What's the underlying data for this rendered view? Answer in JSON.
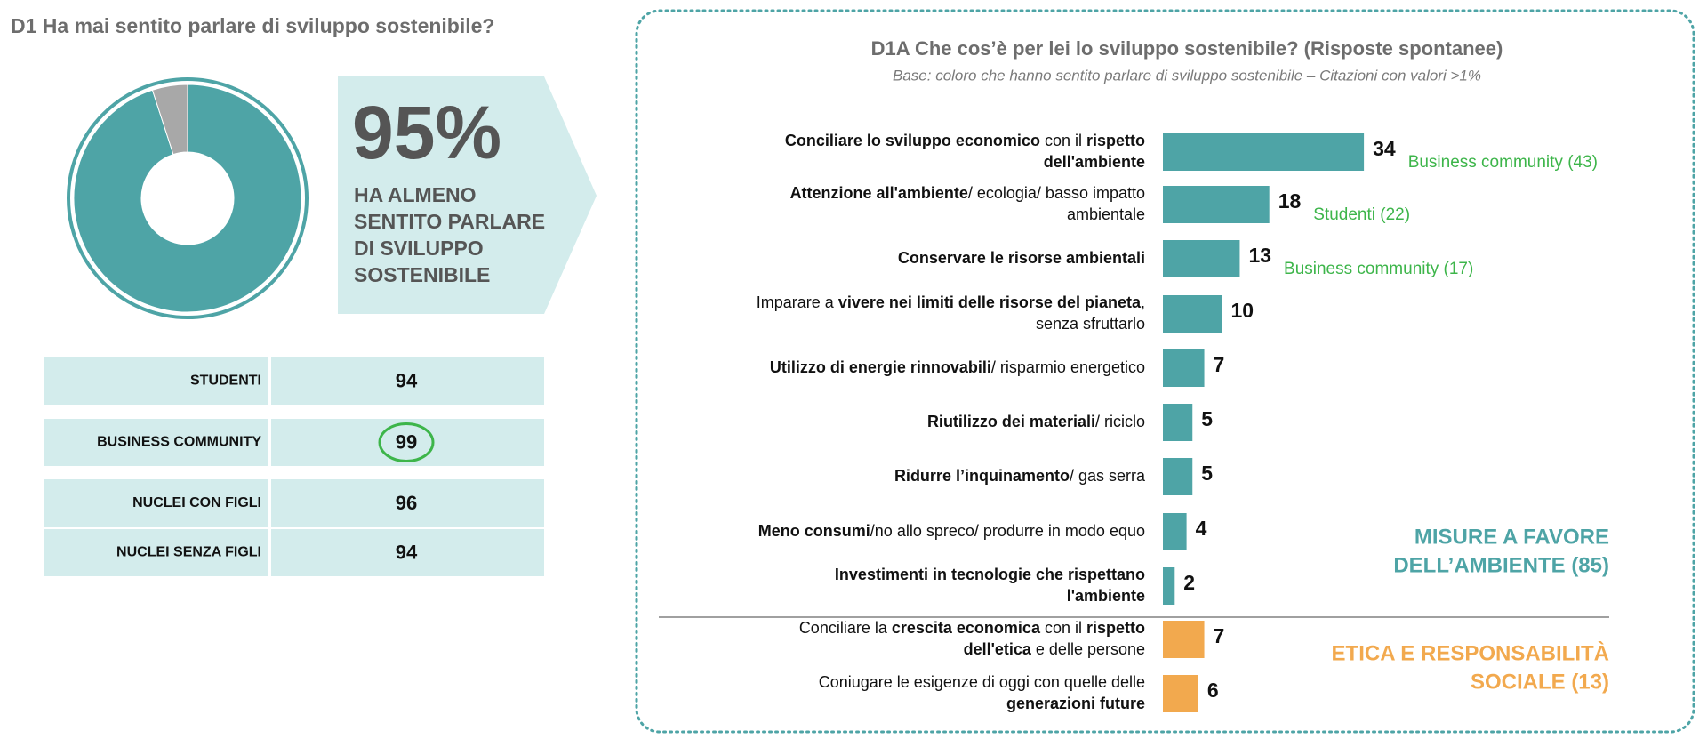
{
  "chart_data": [
    {
      "type": "pie",
      "title": "D1 Ha mai sentito parlare di sviluppo sostenibile?",
      "values": [
        95,
        5
      ],
      "value_labels": [
        "95%",
        null
      ],
      "colors": [
        "#4ea4a6",
        "#a8a8a8"
      ],
      "callout": [
        "HA ALMENO",
        "SENTITO PARLARE",
        "DI SVILUPPO",
        "SOSTENIBILE"
      ]
    },
    {
      "type": "bar",
      "title": "D1A Che cos’è per lei lo sviluppo sostenibile? (Risposte spontanee)",
      "subtitle": "Base: coloro che hanno sentito parlare di sviluppo sostenibile – Citazioni con valori >1%",
      "categories": [
        [
          [
            {
              "t": "Conciliare lo sviluppo economico",
              "b": true
            },
            {
              "t": " con il ",
              "b": false
            },
            {
              "t": "rispetto",
              "b": true
            }
          ],
          [
            {
              "t": "dell'ambiente",
              "b": true
            }
          ]
        ],
        [
          [
            {
              "t": "Attenzione all'ambiente",
              "b": true
            },
            {
              "t": "/ ecologia/ basso impatto",
              "b": false
            }
          ],
          [
            {
              "t": "ambientale",
              "b": false
            }
          ]
        ],
        [
          [
            {
              "t": "Conservare le risorse ambientali",
              "b": true
            }
          ]
        ],
        [
          [
            {
              "t": "Imparare a ",
              "b": false
            },
            {
              "t": "vivere nei limiti delle risorse del pianeta",
              "b": true
            },
            {
              "t": ",",
              "b": false
            }
          ],
          [
            {
              "t": "senza sfruttarlo",
              "b": false
            }
          ]
        ],
        [
          [
            {
              "t": "Utilizzo di energie rinnovabili",
              "b": true
            },
            {
              "t": "/ risparmio energetico",
              "b": false
            }
          ]
        ],
        [
          [
            {
              "t": "Riutilizzo dei materiali",
              "b": true
            },
            {
              "t": "/ riciclo",
              "b": false
            }
          ]
        ],
        [
          [
            {
              "t": "Ridurre l’inquinamento",
              "b": true
            },
            {
              "t": "/ gas serra",
              "b": false
            }
          ]
        ],
        [
          [
            {
              "t": "Meno consumi",
              "b": true
            },
            {
              "t": "/no allo spreco/ produrre in modo equo",
              "b": false
            }
          ]
        ],
        [
          [
            {
              "t": "Investimenti in tecnologie che rispettano",
              "b": true
            }
          ],
          [
            {
              "t": "l'ambiente",
              "b": true
            }
          ]
        ],
        [
          [
            {
              "t": "Conciliare la ",
              "b": false
            },
            {
              "t": "crescita economica",
              "b": true
            },
            {
              "t": " con il ",
              "b": false
            },
            {
              "t": "rispetto",
              "b": true
            }
          ],
          [
            {
              "t": "dell'etica",
              "b": true
            },
            {
              "t": " e delle persone",
              "b": false
            }
          ]
        ],
        [
          [
            {
              "t": "Coniugare le esigenze di oggi con quelle delle",
              "b": false
            }
          ],
          [
            {
              "t": "generazioni future",
              "b": true
            }
          ]
        ]
      ],
      "series": [
        {
          "name": [
            "MISURE A FAVORE",
            "DELL’AMBIENTE (85)"
          ],
          "color": "#4ea4a6",
          "values": [
            34,
            18,
            13,
            10,
            7,
            5,
            5,
            4,
            2,
            null,
            null
          ]
        },
        {
          "name": [
            "ETICA E RESPONSABILITÀ",
            "SOCIALE (13)"
          ],
          "color": "#f2a94e",
          "values": [
            null,
            null,
            null,
            null,
            null,
            null,
            null,
            null,
            null,
            7,
            6
          ]
        }
      ],
      "notes": [
        "Business community (43)",
        "Studenti (22)",
        "Business community (17)",
        null,
        null,
        null,
        null,
        null,
        null,
        null,
        null
      ]
    }
  ],
  "table": {
    "rows": [
      {
        "label": "STUDENTI",
        "value": 94
      },
      {
        "label": "BUSINESS COMMUNITY",
        "value": 99,
        "highlight": true
      },
      {
        "label": "NUCLEI CON FIGLI",
        "value": 96
      },
      {
        "label": "NUCLEI SENZA FIGLI",
        "value": 94
      }
    ]
  }
}
